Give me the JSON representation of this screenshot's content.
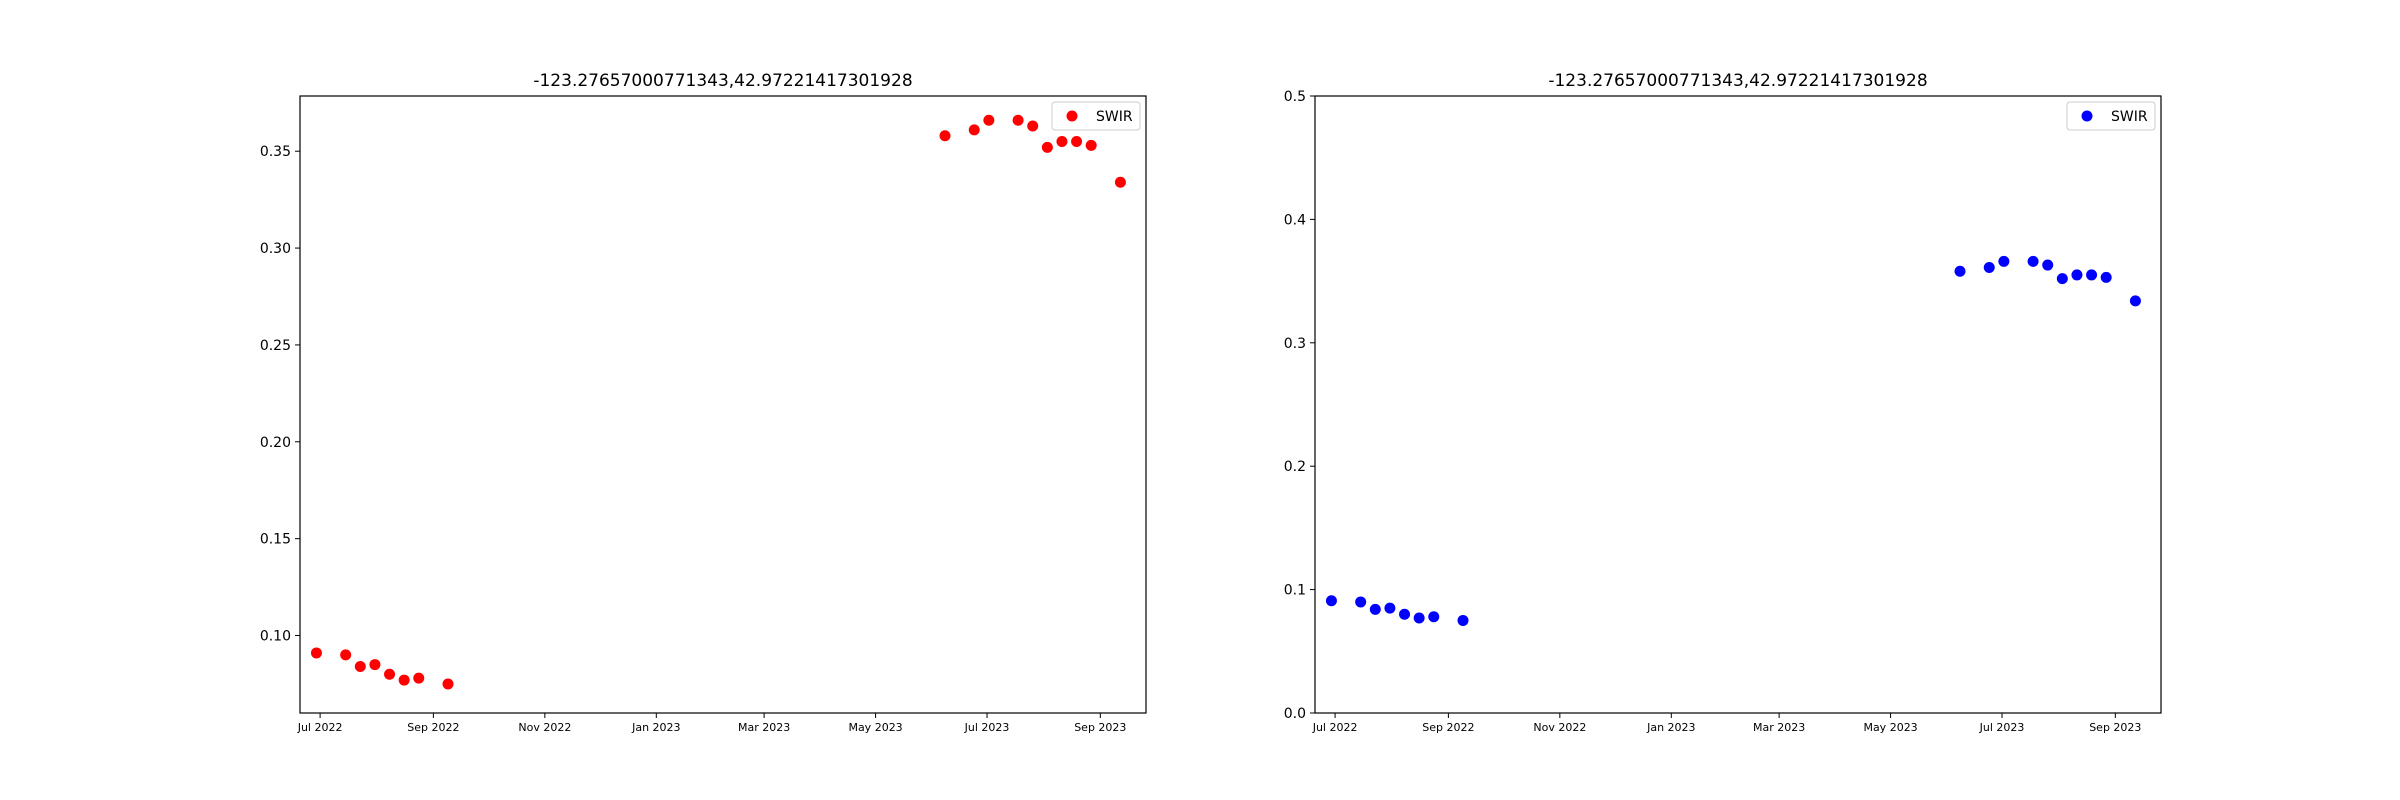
{
  "chart_data": [
    {
      "type": "scatter",
      "title": "-123.27657000771343,42.97221417301928",
      "xlabel": "",
      "ylabel": "",
      "xticks": [
        "Jul 2022",
        "Sep 2022",
        "Nov 2022",
        "Jan 2023",
        "Mar 2023",
        "May 2023",
        "Jul 2023",
        "Sep 2023"
      ],
      "xtick_dates": [
        "2022-07-01",
        "2022-09-01",
        "2022-11-01",
        "2023-01-01",
        "2023-03-01",
        "2023-05-01",
        "2023-07-01",
        "2023-09-01"
      ],
      "yticks": [
        "0.10",
        "0.15",
        "0.20",
        "0.25",
        "0.30",
        "0.35"
      ],
      "ylim": [
        0.06,
        0.3785
      ],
      "xlim": [
        "2022-06-20",
        "2023-09-26"
      ],
      "grid": false,
      "legend_position": "top-right",
      "color": "#ff0000",
      "series": [
        {
          "name": "SWIR",
          "points": [
            {
              "x": "2022-06-29",
              "y": 0.091
            },
            {
              "x": "2022-07-15",
              "y": 0.09
            },
            {
              "x": "2022-07-23",
              "y": 0.084
            },
            {
              "x": "2022-07-31",
              "y": 0.085
            },
            {
              "x": "2022-08-08",
              "y": 0.08
            },
            {
              "x": "2022-08-16",
              "y": 0.077
            },
            {
              "x": "2022-08-24",
              "y": 0.078
            },
            {
              "x": "2022-09-09",
              "y": 0.075
            },
            {
              "x": "2023-06-08",
              "y": 0.358
            },
            {
              "x": "2023-06-24",
              "y": 0.361
            },
            {
              "x": "2023-07-02",
              "y": 0.366
            },
            {
              "x": "2023-07-18",
              "y": 0.366
            },
            {
              "x": "2023-07-26",
              "y": 0.363
            },
            {
              "x": "2023-08-03",
              "y": 0.352
            },
            {
              "x": "2023-08-11",
              "y": 0.355
            },
            {
              "x": "2023-08-19",
              "y": 0.355
            },
            {
              "x": "2023-08-27",
              "y": 0.353
            },
            {
              "x": "2023-09-12",
              "y": 0.334
            }
          ]
        }
      ]
    },
    {
      "type": "scatter",
      "title": "-123.27657000771343,42.97221417301928",
      "xlabel": "",
      "ylabel": "",
      "xticks": [
        "Jul 2022",
        "Sep 2022",
        "Nov 2022",
        "Jan 2023",
        "Mar 2023",
        "May 2023",
        "Jul 2023",
        "Sep 2023"
      ],
      "xtick_dates": [
        "2022-07-01",
        "2022-09-01",
        "2022-11-01",
        "2023-01-01",
        "2023-03-01",
        "2023-05-01",
        "2023-07-01",
        "2023-09-01"
      ],
      "yticks": [
        "0.0",
        "0.1",
        "0.2",
        "0.3",
        "0.4",
        "0.5"
      ],
      "ylim": [
        0.0,
        0.5
      ],
      "xlim": [
        "2022-06-20",
        "2023-09-26"
      ],
      "grid": false,
      "legend_position": "top-right",
      "color": "#0000ff",
      "series": [
        {
          "name": "SWIR",
          "points": [
            {
              "x": "2022-06-29",
              "y": 0.091
            },
            {
              "x": "2022-07-15",
              "y": 0.09
            },
            {
              "x": "2022-07-23",
              "y": 0.084
            },
            {
              "x": "2022-07-31",
              "y": 0.085
            },
            {
              "x": "2022-08-08",
              "y": 0.08
            },
            {
              "x": "2022-08-16",
              "y": 0.077
            },
            {
              "x": "2022-08-24",
              "y": 0.078
            },
            {
              "x": "2022-09-09",
              "y": 0.075
            },
            {
              "x": "2023-06-08",
              "y": 0.358
            },
            {
              "x": "2023-06-24",
              "y": 0.361
            },
            {
              "x": "2023-07-02",
              "y": 0.366
            },
            {
              "x": "2023-07-18",
              "y": 0.366
            },
            {
              "x": "2023-07-26",
              "y": 0.363
            },
            {
              "x": "2023-08-03",
              "y": 0.352
            },
            {
              "x": "2023-08-11",
              "y": 0.355
            },
            {
              "x": "2023-08-19",
              "y": 0.355
            },
            {
              "x": "2023-08-27",
              "y": 0.353
            },
            {
              "x": "2023-09-12",
              "y": 0.334
            }
          ]
        }
      ]
    }
  ]
}
